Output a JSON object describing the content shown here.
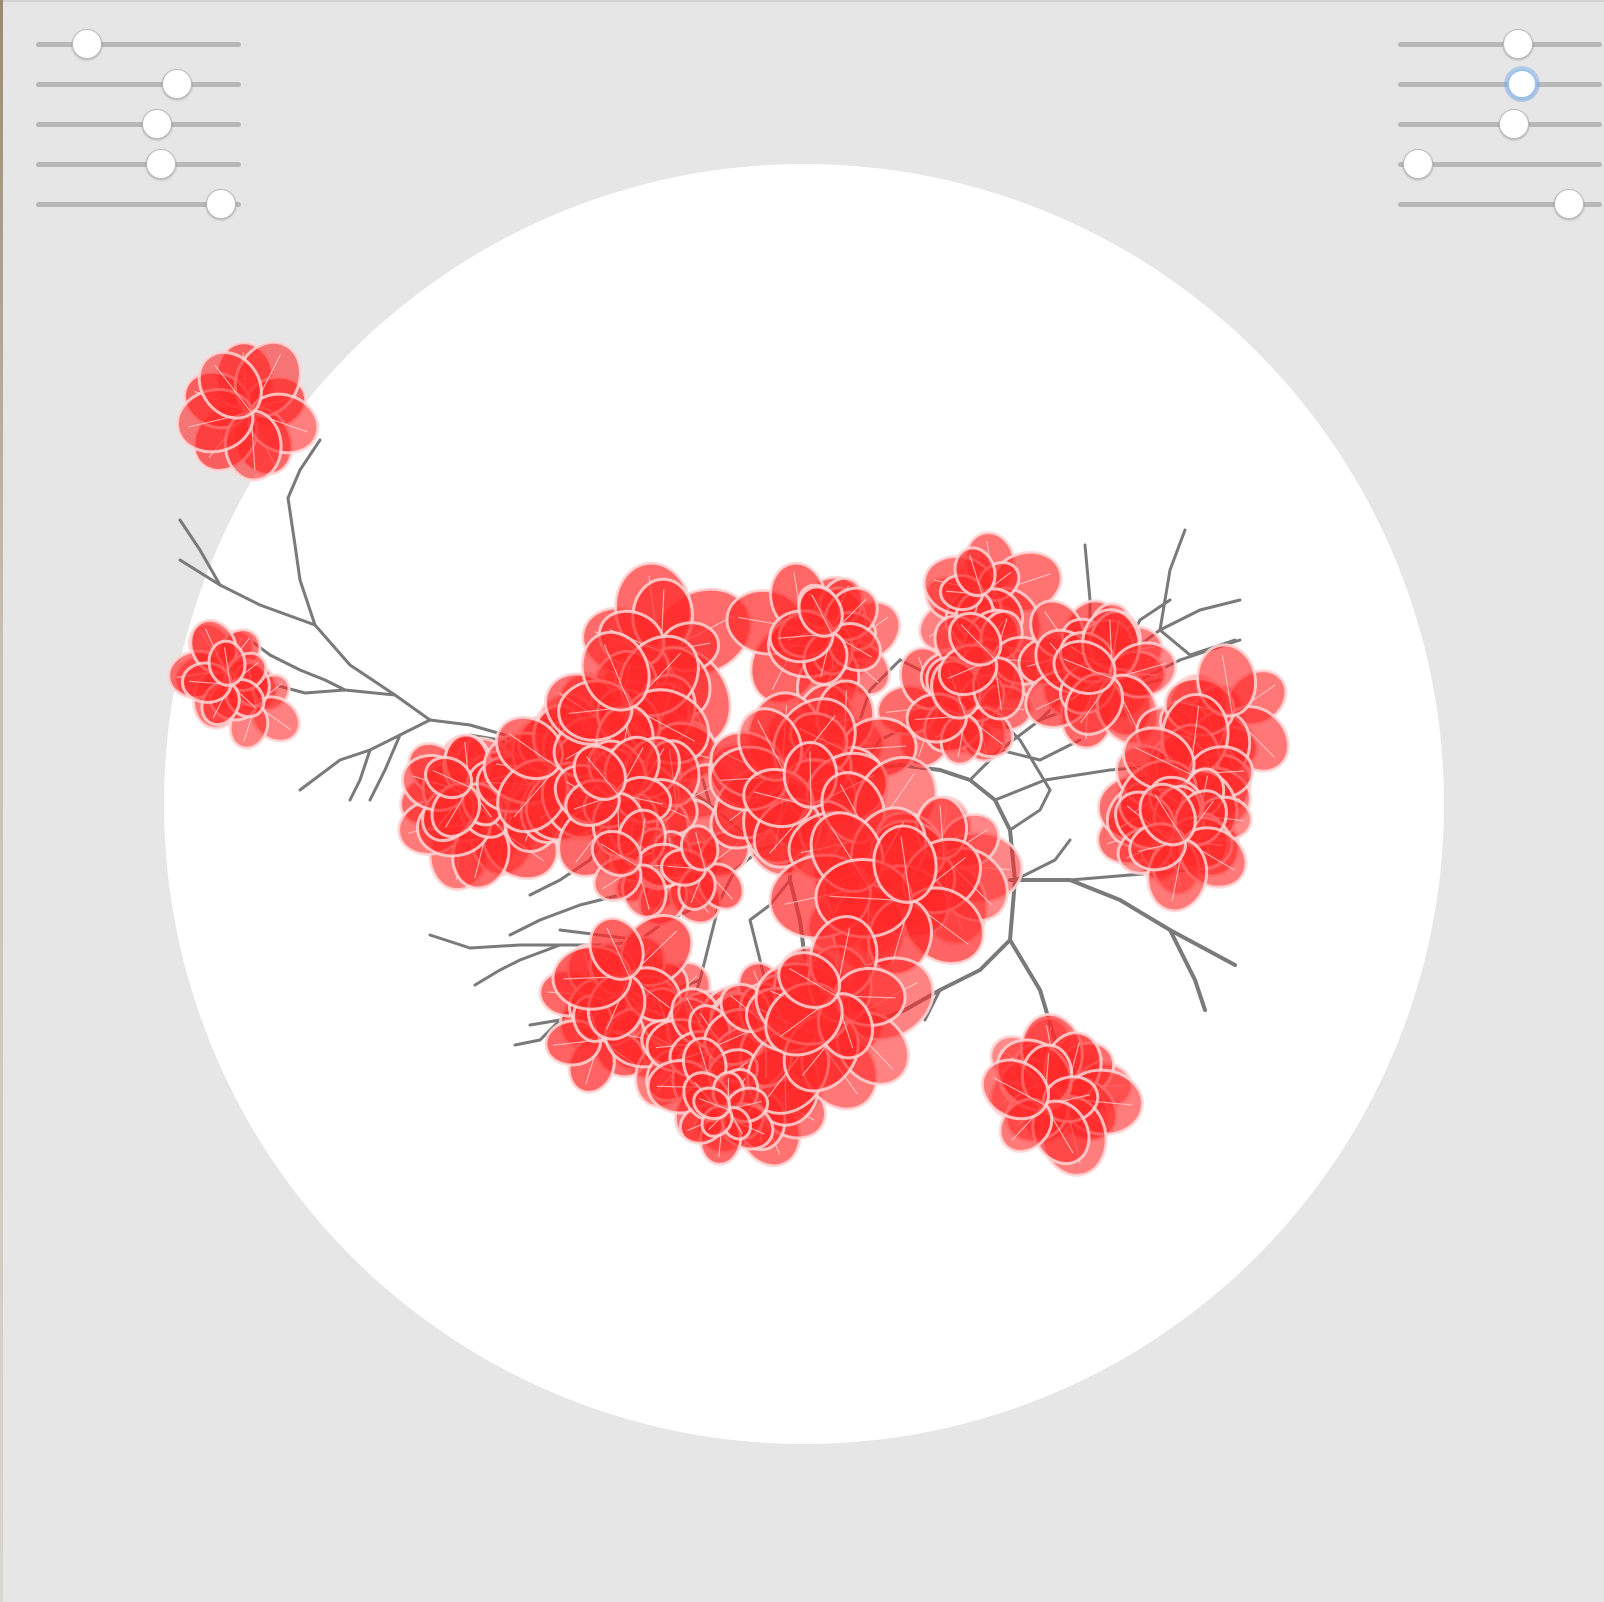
{
  "colors": {
    "background": "#e6e6e6",
    "disc": "#ffffff",
    "branch": "#7a7a7a",
    "petal_fill": "#ff2a2a",
    "petal_outline": "#ffd6d6",
    "slider_track": "#b8b8b8",
    "slider_thumb": "#ffffff",
    "focus_ring": "#9cc3f0"
  },
  "sliders": {
    "left": [
      {
        "id": "left-1",
        "value": 0.25
      },
      {
        "id": "left-2",
        "value": 0.69
      },
      {
        "id": "left-3",
        "value": 0.59
      },
      {
        "id": "left-4",
        "value": 0.61
      },
      {
        "id": "left-5",
        "value": 0.9
      }
    ],
    "right": [
      {
        "id": "right-1",
        "value": 0.59
      },
      {
        "id": "right-2",
        "value": 0.61,
        "focused": true
      },
      {
        "id": "right-3",
        "value": 0.57
      },
      {
        "id": "right-4",
        "value": 0.1
      },
      {
        "id": "right-5",
        "value": 0.84
      }
    ]
  },
  "icons": [
    "slider-thumb-icon",
    "blossom-icon",
    "branch-icon"
  ]
}
